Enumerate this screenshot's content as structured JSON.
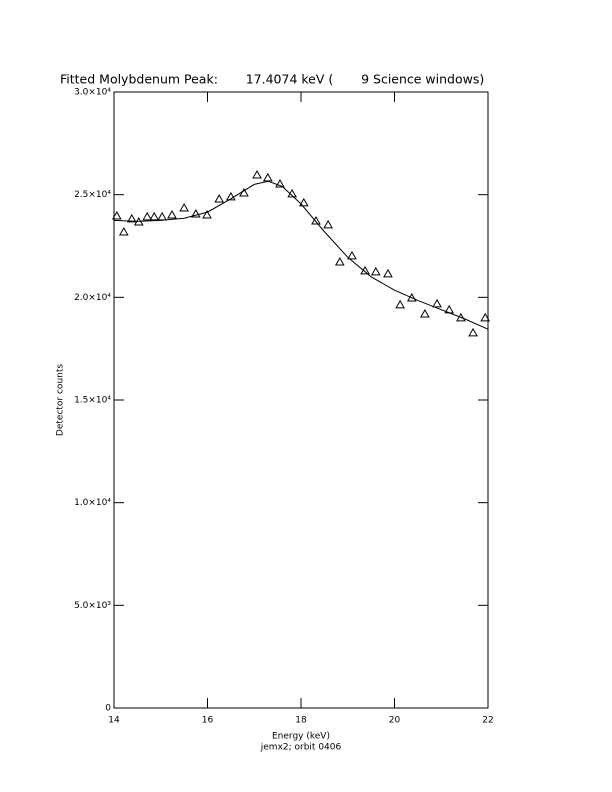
{
  "chart_data": {
    "type": "scatter",
    "title": "Fitted Molybdenum Peak:       17.4074 keV (       9 Science windows)",
    "x_label": "Energy (keV)",
    "y_label": "Detector counts",
    "footer": "jemx2; orbit 0406",
    "xlim": [
      14,
      22
    ],
    "ylim": [
      0,
      30000
    ],
    "xticks": [
      14,
      16,
      18,
      20,
      22
    ],
    "yticks": [
      0,
      {
        "value": 5000,
        "label": "5.0×10³"
      },
      {
        "value": 10000,
        "label": "1.0×10⁴"
      },
      {
        "value": 15000,
        "label": "1.5×10⁴"
      },
      {
        "value": 20000,
        "label": "2.0×10⁴"
      },
      {
        "value": 25000,
        "label": "2.5×10⁴"
      },
      {
        "value": 30000,
        "label": "3.0×10⁴"
      }
    ],
    "series": [
      {
        "kind": "markers",
        "color": "#000000",
        "x": [
          14.06,
          14.21,
          14.38,
          14.53,
          14.71,
          14.86,
          15.03,
          15.24,
          15.5,
          15.75,
          15.99,
          16.25,
          16.5,
          16.78,
          17.06,
          17.29,
          17.55,
          17.81,
          18.06,
          18.32,
          18.58,
          18.83,
          19.09,
          19.37,
          19.6,
          19.86,
          20.12,
          20.37,
          20.65,
          20.91,
          21.17,
          21.42,
          21.68,
          21.94
        ],
        "values": [
          23960,
          23180,
          23820,
          23670,
          23920,
          23920,
          23920,
          24010,
          24350,
          24060,
          24010,
          24790,
          24890,
          25080,
          25960,
          25820,
          25520,
          25040,
          24600,
          23720,
          23530,
          21720,
          22020,
          21290,
          21240,
          21140,
          19630,
          19970,
          19190,
          19680,
          19390,
          19000,
          18270,
          19000
        ]
      },
      {
        "kind": "line",
        "color": "#000000",
        "x": [
          14,
          14.5,
          15,
          15.5,
          16,
          16.5,
          17,
          17.3,
          17.6,
          18,
          18.5,
          19,
          19.5,
          20,
          20.5,
          21,
          21.5,
          22
        ],
        "values": [
          23750,
          23700,
          23750,
          23850,
          24150,
          24800,
          25500,
          25650,
          25400,
          24550,
          23200,
          21950,
          21000,
          20350,
          19850,
          19400,
          18950,
          18450
        ]
      }
    ]
  }
}
